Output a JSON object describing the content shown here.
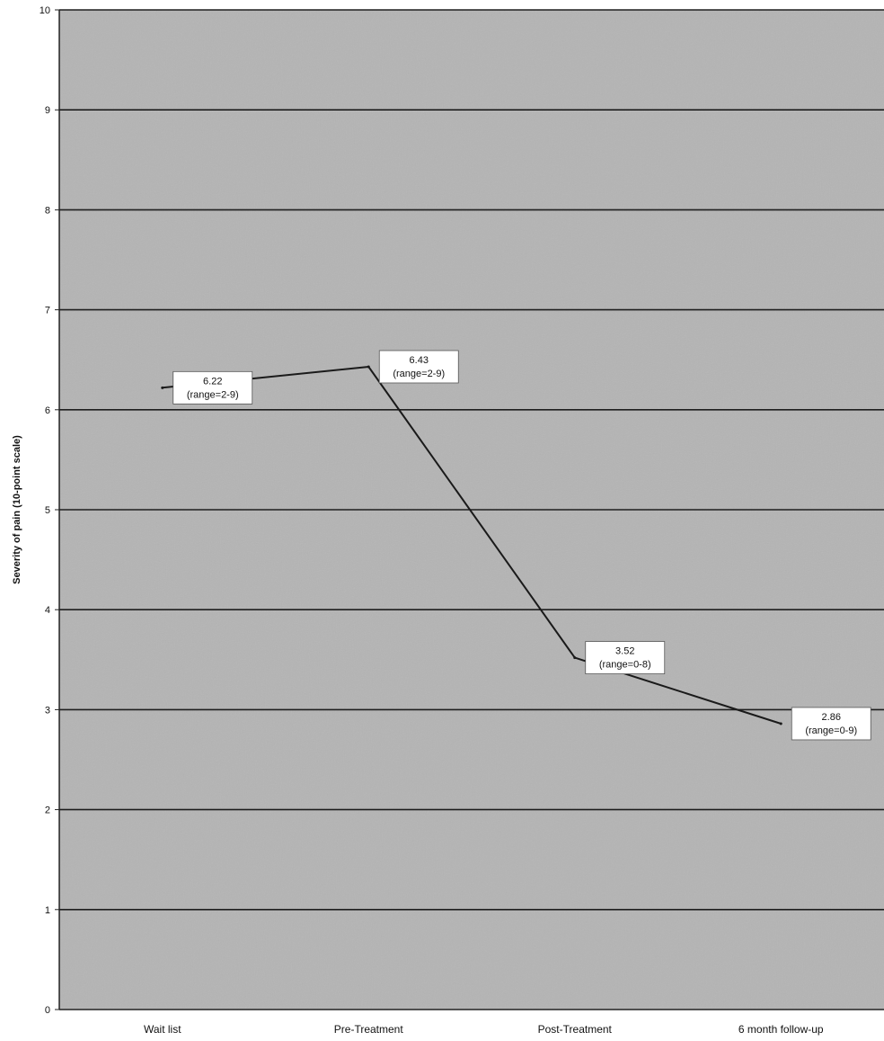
{
  "chart_data": {
    "type": "line",
    "title": "",
    "xlabel": "",
    "ylabel": "Severity of pain (10-point scale)",
    "ylim": [
      0,
      10
    ],
    "yticks": [
      "0",
      "1",
      "2",
      "3",
      "4",
      "5",
      "6",
      "7",
      "8",
      "9",
      "10"
    ],
    "grid": true,
    "categories": [
      "Wait list",
      "Pre-Treatment",
      "Post-Treatment",
      "6 month follow-up"
    ],
    "series": [
      {
        "values": [
          6.22,
          6.43,
          3.52,
          2.86
        ],
        "color": "#1a1a1a"
      }
    ],
    "annotations": [
      {
        "value": "6.22",
        "range": "(range=2-9)"
      },
      {
        "value": "6.43",
        "range": "(range=2-9)"
      },
      {
        "value": "3.52",
        "range": "(range=0-8)"
      },
      {
        "value": "2.86",
        "range": "(range=0-9)"
      }
    ],
    "colors": {
      "plot_background": "#b4b4b4",
      "gridline": "#1e1e1e",
      "label_box": "#ffffff"
    }
  }
}
